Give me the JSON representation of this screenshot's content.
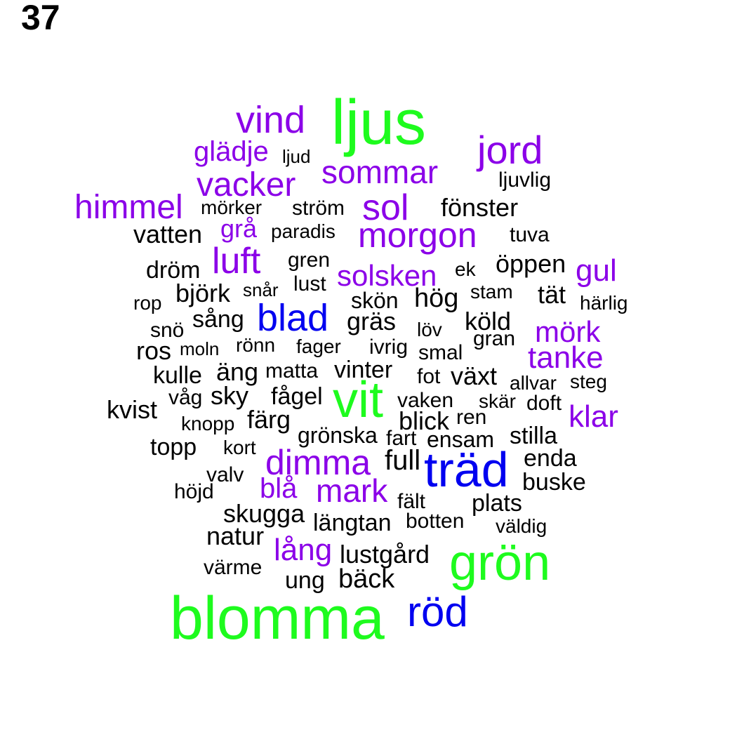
{
  "page_number": "37",
  "colors": {
    "green": "#1efb1e",
    "purple": "#8b00e8",
    "blue": "#0000f0",
    "black": "#000000"
  },
  "words": [
    {
      "text": "ljus",
      "color": "green"
    },
    {
      "text": "vind",
      "color": "purple"
    },
    {
      "text": "jord",
      "color": "purple"
    },
    {
      "text": "glädje",
      "color": "purple"
    },
    {
      "text": "ljud",
      "color": "black"
    },
    {
      "text": "sommar",
      "color": "purple"
    },
    {
      "text": "vacker",
      "color": "purple"
    },
    {
      "text": "ljuvlig",
      "color": "black"
    },
    {
      "text": "himmel",
      "color": "purple"
    },
    {
      "text": "mörker",
      "color": "black"
    },
    {
      "text": "ström",
      "color": "black"
    },
    {
      "text": "sol",
      "color": "purple"
    },
    {
      "text": "fönster",
      "color": "black"
    },
    {
      "text": "vatten",
      "color": "black"
    },
    {
      "text": "grå",
      "color": "purple"
    },
    {
      "text": "paradis",
      "color": "black"
    },
    {
      "text": "morgon",
      "color": "purple"
    },
    {
      "text": "tuva",
      "color": "black"
    },
    {
      "text": "dröm",
      "color": "black"
    },
    {
      "text": "luft",
      "color": "purple"
    },
    {
      "text": "gren",
      "color": "black"
    },
    {
      "text": "solsken",
      "color": "purple"
    },
    {
      "text": "ek",
      "color": "black"
    },
    {
      "text": "öppen",
      "color": "black"
    },
    {
      "text": "gul",
      "color": "purple"
    },
    {
      "text": "björk",
      "color": "black"
    },
    {
      "text": "snår",
      "color": "black"
    },
    {
      "text": "lust",
      "color": "black"
    },
    {
      "text": "stam",
      "color": "black"
    },
    {
      "text": "tät",
      "color": "black"
    },
    {
      "text": "rop",
      "color": "black"
    },
    {
      "text": "skön",
      "color": "black"
    },
    {
      "text": "hög",
      "color": "black"
    },
    {
      "text": "härlig",
      "color": "black"
    },
    {
      "text": "sång",
      "color": "black"
    },
    {
      "text": "blad",
      "color": "blue"
    },
    {
      "text": "gräs",
      "color": "black"
    },
    {
      "text": "köld",
      "color": "black"
    },
    {
      "text": "snö",
      "color": "black"
    },
    {
      "text": "löv",
      "color": "black"
    },
    {
      "text": "mörk",
      "color": "purple"
    },
    {
      "text": "gran",
      "color": "black"
    },
    {
      "text": "ros",
      "color": "black"
    },
    {
      "text": "moln",
      "color": "black"
    },
    {
      "text": "rönn",
      "color": "black"
    },
    {
      "text": "fager",
      "color": "black"
    },
    {
      "text": "ivrig",
      "color": "black"
    },
    {
      "text": "smal",
      "color": "black"
    },
    {
      "text": "tanke",
      "color": "purple"
    },
    {
      "text": "kulle",
      "color": "black"
    },
    {
      "text": "äng",
      "color": "black"
    },
    {
      "text": "matta",
      "color": "black"
    },
    {
      "text": "vinter",
      "color": "black"
    },
    {
      "text": "fot",
      "color": "black"
    },
    {
      "text": "växt",
      "color": "black"
    },
    {
      "text": "allvar",
      "color": "black"
    },
    {
      "text": "steg",
      "color": "black"
    },
    {
      "text": "våg",
      "color": "black"
    },
    {
      "text": "sky",
      "color": "black"
    },
    {
      "text": "fågel",
      "color": "black"
    },
    {
      "text": "vit",
      "color": "green"
    },
    {
      "text": "vaken",
      "color": "black"
    },
    {
      "text": "skär",
      "color": "black"
    },
    {
      "text": "doft",
      "color": "black"
    },
    {
      "text": "kvist",
      "color": "black"
    },
    {
      "text": "klar",
      "color": "purple"
    },
    {
      "text": "knopp",
      "color": "black"
    },
    {
      "text": "färg",
      "color": "black"
    },
    {
      "text": "blick",
      "color": "black"
    },
    {
      "text": "ren",
      "color": "black"
    },
    {
      "text": "topp",
      "color": "black"
    },
    {
      "text": "grönska",
      "color": "black"
    },
    {
      "text": "fart",
      "color": "black"
    },
    {
      "text": "ensam",
      "color": "black"
    },
    {
      "text": "stilla",
      "color": "black"
    },
    {
      "text": "kort",
      "color": "black"
    },
    {
      "text": "dimma",
      "color": "purple"
    },
    {
      "text": "full",
      "color": "black"
    },
    {
      "text": "träd",
      "color": "blue"
    },
    {
      "text": "enda",
      "color": "black"
    },
    {
      "text": "valv",
      "color": "black"
    },
    {
      "text": "buske",
      "color": "black"
    },
    {
      "text": "höjd",
      "color": "black"
    },
    {
      "text": "blå",
      "color": "purple"
    },
    {
      "text": "mark",
      "color": "purple"
    },
    {
      "text": "fält",
      "color": "black"
    },
    {
      "text": "plats",
      "color": "black"
    },
    {
      "text": "skugga",
      "color": "black"
    },
    {
      "text": "längtan",
      "color": "black"
    },
    {
      "text": "botten",
      "color": "black"
    },
    {
      "text": "väldig",
      "color": "black"
    },
    {
      "text": "natur",
      "color": "black"
    },
    {
      "text": "lång",
      "color": "purple"
    },
    {
      "text": "lustgård",
      "color": "black"
    },
    {
      "text": "grön",
      "color": "green"
    },
    {
      "text": "värme",
      "color": "black"
    },
    {
      "text": "ung",
      "color": "black"
    },
    {
      "text": "bäck",
      "color": "black"
    },
    {
      "text": "blomma",
      "color": "green"
    },
    {
      "text": "röd",
      "color": "blue"
    }
  ]
}
